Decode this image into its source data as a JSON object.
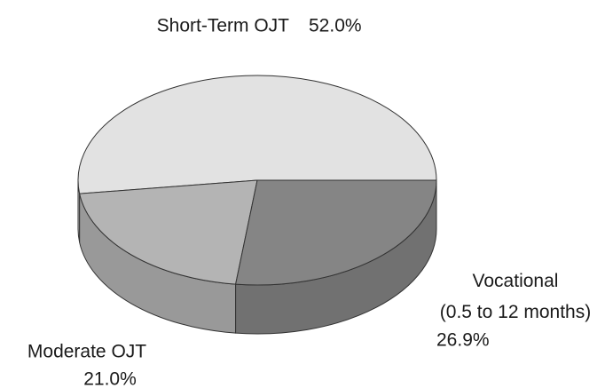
{
  "chart_data": {
    "type": "pie3d",
    "categories": [
      "Short-Term OJT",
      "Moderate OJT",
      "Vocational (0.5 to 12 months)"
    ],
    "values": [
      52.0,
      21.0,
      26.9
    ],
    "value_labels": [
      "52.0%",
      "21.0%",
      "26.9%"
    ],
    "colors": [
      "#e2e2e2",
      "#b4b4b4",
      "#858585"
    ]
  }
}
